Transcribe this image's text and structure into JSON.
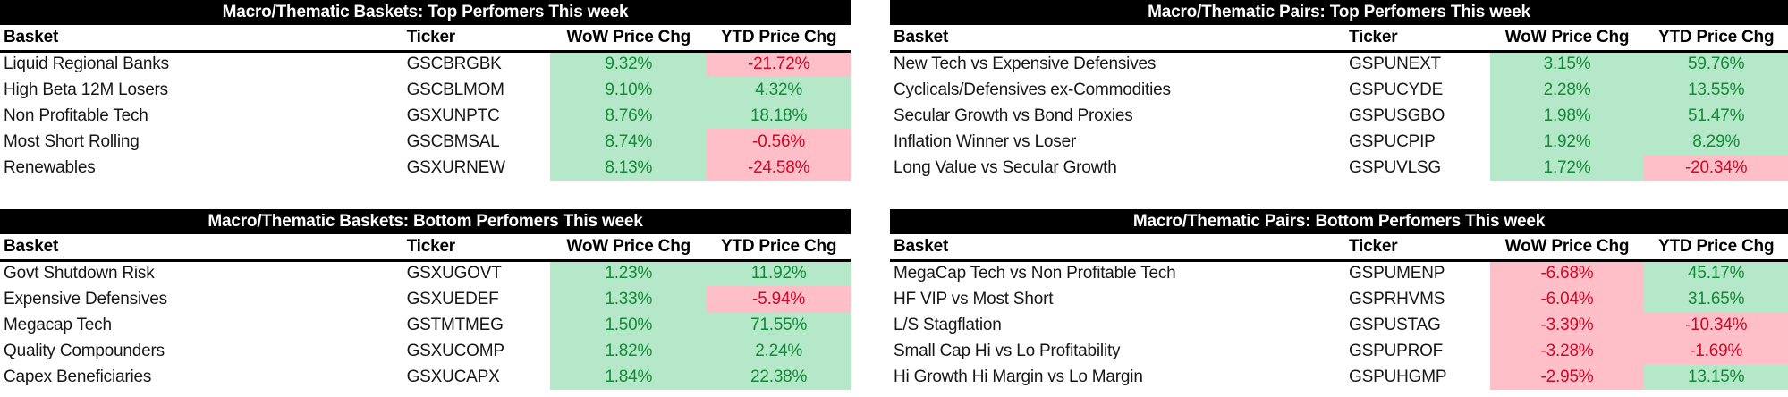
{
  "colors": {
    "page_bg": "#ffffff",
    "title_bar_bg": "#000000",
    "title_bar_text": "#ffffff",
    "header_text": "#000000",
    "body_text": "#161616",
    "positive_fill": "#b4e8c8",
    "positive_text": "#128a38",
    "negative_fill": "#ffbfc9",
    "negative_text": "#cc0a26"
  },
  "chart_data": [
    {
      "type": "table",
      "title": "Macro/Thematic Baskets: Top Perfomers This week",
      "columns": [
        "Basket",
        "Ticker",
        "WoW Price Chg",
        "YTD Price Chg"
      ],
      "rows": [
        [
          "Liquid Regional Banks",
          "GSCBRGBK",
          "9.32%",
          "-21.72%"
        ],
        [
          "High Beta 12M Losers",
          "GSCBLMOM",
          "9.10%",
          "4.32%"
        ],
        [
          "Non Profitable Tech",
          "GSXUNPTC",
          "8.76%",
          "18.18%"
        ],
        [
          "Most Short Rolling",
          "GSCBMSAL",
          "8.74%",
          "-0.56%"
        ],
        [
          "Renewables",
          "GSXURNEW",
          "8.13%",
          "-24.58%"
        ]
      ]
    },
    {
      "type": "table",
      "title": "Macro/Thematic Pairs: Top Perfomers This week",
      "columns": [
        "Basket",
        "Ticker",
        "WoW Price Chg",
        "YTD Price Chg"
      ],
      "rows": [
        [
          "New Tech vs Expensive Defensives",
          "GSPUNEXT",
          "3.15%",
          "59.76%"
        ],
        [
          "Cyclicals/Defensives ex-Commodities",
          "GSPUCYDE",
          "2.28%",
          "13.55%"
        ],
        [
          "Secular Growth vs Bond Proxies",
          "GSPUSGBO",
          "1.98%",
          "51.47%"
        ],
        [
          "Inflation Winner vs Loser",
          "GSPUCPIP",
          "1.92%",
          "8.29%"
        ],
        [
          "Long Value vs Secular Growth",
          "GSPUVLSG",
          "1.72%",
          "-20.34%"
        ]
      ]
    },
    {
      "type": "table",
      "title": "Macro/Thematic Baskets: Bottom Perfomers This week",
      "columns": [
        "Basket",
        "Ticker",
        "WoW Price Chg",
        "YTD Price Chg"
      ],
      "rows": [
        [
          "Govt Shutdown Risk",
          "GSXUGOVT",
          "1.23%",
          "11.92%"
        ],
        [
          "Expensive Defensives",
          "GSXUEDEF",
          "1.33%",
          "-5.94%"
        ],
        [
          "Megacap Tech",
          "GSTMTMEG",
          "1.50%",
          "71.55%"
        ],
        [
          "Quality Compounders",
          "GSXUCOMP",
          "1.82%",
          "2.24%"
        ],
        [
          "Capex Beneficiaries",
          "GSXUCAPX",
          "1.84%",
          "22.38%"
        ]
      ]
    },
    {
      "type": "table",
      "title": "Macro/Thematic Pairs: Bottom Perfomers This week",
      "columns": [
        "Basket",
        "Ticker",
        "WoW Price Chg",
        "YTD Price Chg"
      ],
      "rows": [
        [
          "MegaCap Tech vs Non Profitable Tech",
          "GSPUMENP",
          "-6.68%",
          "45.17%"
        ],
        [
          "HF VIP vs Most Short",
          "GSPRHVMS",
          "-6.04%",
          "31.65%"
        ],
        [
          "L/S Stagflation",
          "GSPUSTAG",
          "-3.39%",
          "-10.34%"
        ],
        [
          "Small Cap Hi vs Lo Profitability",
          "GSPUPROF",
          "-3.28%",
          "-1.69%"
        ],
        [
          "Hi Growth Hi Margin vs Lo Margin",
          "GSPUHGMP",
          "-2.95%",
          "13.15%"
        ]
      ]
    }
  ]
}
